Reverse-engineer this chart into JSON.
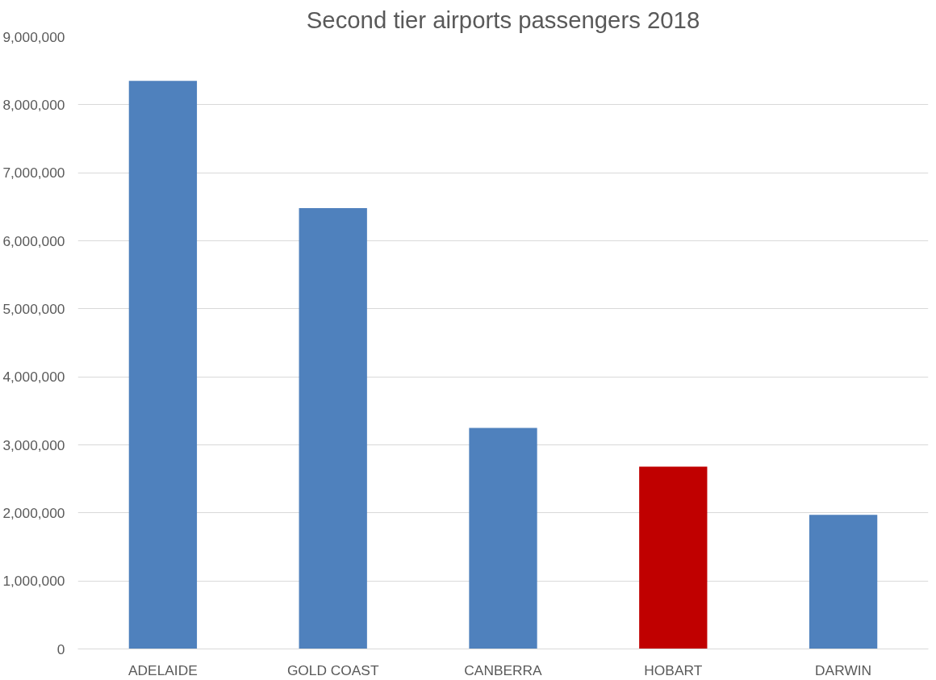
{
  "chart_data": {
    "type": "bar",
    "title": "Second tier airports passengers 2018",
    "categories": [
      "ADELAIDE",
      "GOLD COAST",
      "CANBERRA",
      "HOBART",
      "DARWIN"
    ],
    "values": [
      8350000,
      6480000,
      3250000,
      2680000,
      1970000
    ],
    "colors": [
      "#4f81bd",
      "#4f81bd",
      "#4f81bd",
      "#c00000",
      "#4f81bd"
    ],
    "ylim": [
      0,
      9000000
    ],
    "yticks": [
      {
        "value": 0,
        "label": "0"
      },
      {
        "value": 1000000,
        "label": "1,000,000"
      },
      {
        "value": 2000000,
        "label": "2,000,000"
      },
      {
        "value": 3000000,
        "label": "3,000,000"
      },
      {
        "value": 4000000,
        "label": "4,000,000"
      },
      {
        "value": 5000000,
        "label": "5,000,000"
      },
      {
        "value": 6000000,
        "label": "6,000,000"
      },
      {
        "value": 7000000,
        "label": "7,000,000"
      },
      {
        "value": 8000000,
        "label": "8,000,000"
      },
      {
        "value": 9000000,
        "label": "9,000,000"
      }
    ],
    "grid": "y"
  }
}
